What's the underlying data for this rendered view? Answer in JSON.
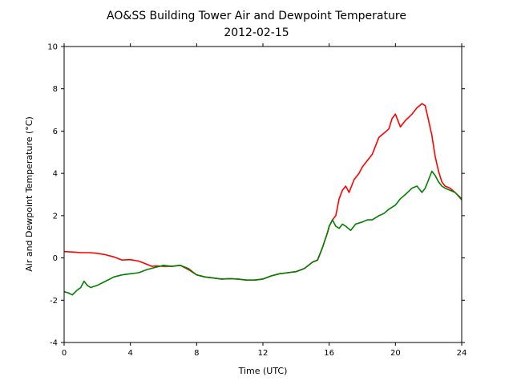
{
  "chart_data": {
    "type": "line",
    "title": "AO&SS Building Tower Air and Dewpoint Temperature",
    "subtitle": "2012-02-15",
    "xlabel": "Time (UTC)",
    "ylabel": "Air and Dewpoint Temperature (°C)",
    "xlim": [
      0,
      24
    ],
    "ylim": [
      -4,
      10
    ],
    "xticks": [
      0,
      4,
      8,
      12,
      16,
      20,
      24
    ],
    "yticks": [
      -4,
      -2,
      0,
      2,
      4,
      6,
      8,
      10
    ],
    "grid": false,
    "series": [
      {
        "color": "#ff0000",
        "x": [
          0,
          0.5,
          1,
          1.5,
          2,
          2.5,
          3,
          3.5,
          4,
          4.5,
          5,
          5.3,
          5.6,
          6,
          6.5,
          7,
          7.5,
          8,
          8.5,
          9,
          9.5,
          10,
          10.5,
          11,
          11.5,
          12,
          12.5,
          13,
          13.5,
          14,
          14.5,
          15,
          15.3,
          15.6,
          15.9,
          16,
          16.2,
          16.4,
          16.6,
          16.8,
          17,
          17.2,
          17.5,
          17.8,
          18,
          18.3,
          18.6,
          19,
          19.3,
          19.6,
          19.8,
          20,
          20.3,
          20.6,
          21,
          21.3,
          21.6,
          21.8,
          22,
          22.2,
          22.4,
          22.6,
          22.8,
          23,
          23.3,
          23.6,
          24
        ],
        "y": [
          0.3,
          0.28,
          0.25,
          0.25,
          0.22,
          0.15,
          0.05,
          -0.1,
          -0.08,
          -0.15,
          -0.3,
          -0.4,
          -0.38,
          -0.4,
          -0.4,
          -0.35,
          -0.55,
          -0.8,
          -0.9,
          -0.95,
          -1.0,
          -0.98,
          -1.0,
          -1.05,
          -1.05,
          -1.0,
          -0.85,
          -0.75,
          -0.7,
          -0.65,
          -0.5,
          -0.2,
          -0.1,
          0.5,
          1.2,
          1.5,
          1.8,
          2.0,
          2.8,
          3.2,
          3.4,
          3.1,
          3.7,
          4.0,
          4.3,
          4.6,
          4.9,
          5.7,
          5.9,
          6.1,
          6.6,
          6.8,
          6.2,
          6.5,
          6.8,
          7.1,
          7.3,
          7.2,
          6.5,
          5.8,
          4.8,
          4.1,
          3.6,
          3.4,
          3.3,
          3.1,
          2.8
        ]
      },
      {
        "color": "#008000",
        "x": [
          0,
          0.25,
          0.5,
          0.75,
          1,
          1.2,
          1.4,
          1.6,
          2,
          2.5,
          3,
          3.5,
          4,
          4.5,
          5,
          5.5,
          6,
          6.5,
          7,
          7.5,
          8,
          8.5,
          9,
          9.5,
          10,
          10.5,
          11,
          11.5,
          12,
          12.5,
          13,
          13.5,
          14,
          14.5,
          15,
          15.3,
          15.6,
          15.9,
          16,
          16.2,
          16.4,
          16.6,
          16.8,
          17,
          17.3,
          17.6,
          18,
          18.3,
          18.6,
          19,
          19.3,
          19.6,
          20,
          20.3,
          20.6,
          21,
          21.3,
          21.6,
          21.8,
          22,
          22.2,
          22.4,
          22.6,
          22.8,
          23,
          23.3,
          23.6,
          24
        ],
        "y": [
          -1.6,
          -1.65,
          -1.75,
          -1.55,
          -1.4,
          -1.1,
          -1.3,
          -1.4,
          -1.3,
          -1.1,
          -0.9,
          -0.8,
          -0.75,
          -0.7,
          -0.55,
          -0.45,
          -0.35,
          -0.4,
          -0.35,
          -0.5,
          -0.8,
          -0.9,
          -0.95,
          -1.0,
          -0.98,
          -1.0,
          -1.05,
          -1.05,
          -1.0,
          -0.85,
          -0.75,
          -0.7,
          -0.65,
          -0.5,
          -0.2,
          -0.1,
          0.5,
          1.2,
          1.5,
          1.8,
          1.5,
          1.4,
          1.6,
          1.5,
          1.3,
          1.6,
          1.7,
          1.8,
          1.8,
          2.0,
          2.1,
          2.3,
          2.5,
          2.8,
          3.0,
          3.3,
          3.4,
          3.1,
          3.3,
          3.7,
          4.1,
          3.9,
          3.6,
          3.4,
          3.3,
          3.2,
          3.1,
          2.75
        ]
      }
    ]
  }
}
